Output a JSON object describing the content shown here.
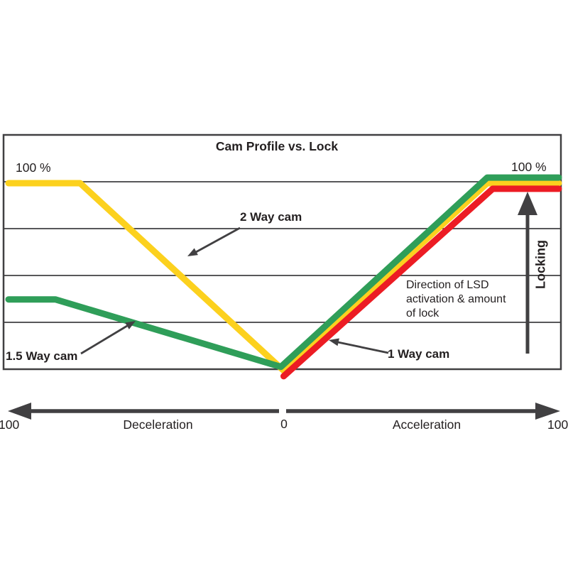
{
  "colors": {
    "frame": "#414042",
    "text": "#231f20",
    "two_way_yellow": "#fcd11e",
    "one_five_way_green": "#2f9e59",
    "one_way_red": "#ec1c24"
  },
  "chart": {
    "title": "Cam Profile vs. Lock",
    "top_left_percent": "100 %",
    "top_right_percent": "100 %",
    "locking_axis_label": "Locking",
    "direction_note": "Direction of LSD\nactivation & amount\nof lock",
    "series_labels": {
      "two_way": "2 Way cam",
      "one_five_way": "1.5 Way cam",
      "one_way": "1 Way cam"
    }
  },
  "x_axis": {
    "left_value": "100",
    "left_region_label": "Deceleration",
    "zero_value": "0",
    "right_region_label": "Acceleration",
    "right_value": "100"
  },
  "chart_data": {
    "type": "line",
    "title": "Cam Profile vs. Lock",
    "xlabel_left": "Deceleration",
    "xlabel_right": "Acceleration",
    "ylabel": "Locking",
    "x_axis_values": [
      "100 (deceleration)",
      "0",
      "100 (acceleration)"
    ],
    "xlim": [
      -100,
      100
    ],
    "ylim": [
      0,
      100
    ],
    "grid": "horizontal, 4 inner gridlines",
    "legend_position": "inline annotations with pointer arrows",
    "series": [
      {
        "name": "2 Way cam",
        "color": "#fcd11e",
        "points": [
          [
            -100,
            100
          ],
          [
            -74,
            100
          ],
          [
            0,
            0
          ],
          [
            74,
            100
          ],
          [
            100,
            100
          ]
        ]
      },
      {
        "name": "1.5 Way cam",
        "color": "#2f9e59",
        "points": [
          [
            -100,
            38
          ],
          [
            -83,
            38
          ],
          [
            -1,
            2
          ],
          [
            74,
            103
          ],
          [
            100,
            103
          ]
        ]
      },
      {
        "name": "1 Way cam",
        "color": "#ec1c24",
        "points": [
          [
            0,
            -3
          ],
          [
            76,
            97
          ],
          [
            100,
            97
          ]
        ]
      }
    ],
    "annotations": [
      "100 % at top of deceleration side",
      "100 % at top of acceleration side",
      "Direction of LSD activation & amount of lock (upward arrow labelled Locking)"
    ]
  }
}
